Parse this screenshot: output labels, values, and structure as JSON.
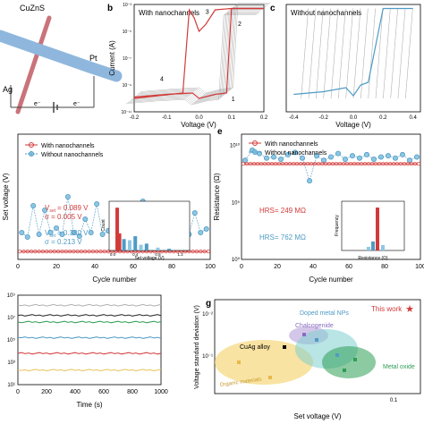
{
  "colors": {
    "red": "#d23a3a",
    "blue": "#4f9bc4",
    "light_blue": "#8ec7e3",
    "gray": "#9a9a9a",
    "green": "#2e9e55",
    "purple": "#b8a0d8",
    "yellow": "#f5d77a",
    "teal": "#7fd0cf",
    "wire_blue": "#8fb7dd",
    "wire_red": "#c9737a"
  },
  "icons": {
    "star": "red-star-icon"
  },
  "panels": {
    "a": {
      "labels": {
        "material": "CuZnS",
        "left": "Ag",
        "right": "Pt",
        "e1": "e⁻",
        "e2": "e⁻"
      }
    },
    "b": {
      "letter": "b",
      "subtitle": "With nanochannels"
    },
    "c": {
      "letter": "c",
      "subtitle": "Without  nanochannels"
    },
    "d": {
      "stat_label": "V",
      "stat_sub": "set"
    },
    "e": {
      "letter": "e"
    },
    "g": {
      "letter": "g"
    }
  },
  "chart_data": [
    {
      "id": "b",
      "type": "line",
      "title": "With nanochannels",
      "xlabel": "Voltage (V)",
      "ylabel": "Current (A)",
      "xlim": [
        -0.2,
        0.2
      ],
      "ylim_log10": [
        -11,
        -3
      ],
      "scale_y": "log",
      "xticks": [
        "-0.2",
        "-0.1",
        "0.0",
        "0.1",
        "0.2"
      ],
      "yticks": [
        "10⁻¹¹",
        "10⁻⁹",
        "10⁻⁷",
        "10⁻⁵",
        "10⁻³"
      ],
      "annotations": [
        "1",
        "2",
        "3",
        "4"
      ],
      "series": [
        {
          "x": [
            -0.2,
            -0.1,
            -0.02,
            0.0,
            0.05,
            0.085,
            0.1,
            0.2
          ],
          "y": [
            -9.9,
            -9.7,
            -9.6,
            -10.0,
            -9.7,
            -9.6,
            -3.3,
            -3.3
          ]
        },
        {
          "x": [
            0.2,
            0.1,
            0.05,
            0.02,
            0.0,
            -0.015,
            -0.03,
            -0.05,
            -0.2
          ],
          "y": [
            -3.3,
            -3.3,
            -3.4,
            -4.5,
            -5.0,
            -4.0,
            -3.4,
            -9.6,
            -10.0
          ]
        }
      ]
    },
    {
      "id": "c",
      "type": "line",
      "title": "Without  nanochannels",
      "xlabel": "Voltage (V)",
      "ylabel": "",
      "xlim": [
        -0.45,
        0.45
      ],
      "ylim_log10": [
        -11,
        -3
      ],
      "scale_y": "log",
      "xticks": [
        "-0.4",
        "-0.2",
        "0.0",
        "0.2",
        "0.4"
      ],
      "yticks": [],
      "series": [
        {
          "x": [
            -0.4,
            -0.2,
            -0.05,
            0.0,
            0.05,
            0.1,
            0.2,
            0.4
          ],
          "y": [
            -9.7,
            -9.5,
            -9.2,
            -9.8,
            -9.0,
            -8.8,
            -3.3,
            -3.3
          ]
        }
      ]
    },
    {
      "id": "d",
      "type": "scatter",
      "xlabel": "Cycle number",
      "ylabel": "Set voltage (V)",
      "xlim": [
        0,
        100
      ],
      "ylim": [
        0,
        1.4
      ],
      "xticks": [
        "0",
        "20",
        "40",
        "60",
        "80",
        "100"
      ],
      "yticks": [],
      "legend_position": "top-left",
      "series": [
        {
          "name": "With nanochannels",
          "y_const": 0.089
        },
        {
          "name": "Without nanochannels",
          "x": [
            2,
            5,
            8,
            11,
            14,
            17,
            20,
            23,
            26,
            29,
            32,
            35,
            38,
            41,
            44,
            47,
            50,
            53,
            56,
            59,
            62,
            65,
            68,
            71,
            74,
            77,
            80,
            83,
            86,
            89,
            92,
            95,
            98
          ],
          "y": [
            0.3,
            0.25,
            0.6,
            0.28,
            0.55,
            0.3,
            0.35,
            0.28,
            0.7,
            0.3,
            0.26,
            0.45,
            0.3,
            0.62,
            0.28,
            0.32,
            0.58,
            0.3,
            0.27,
            0.5,
            0.33,
            0.65,
            0.3,
            0.29,
            0.55,
            0.31,
            0.6,
            0.3,
            0.48,
            0.28,
            0.52,
            0.3,
            0.34
          ]
        }
      ],
      "stats": [
        {
          "text": "= 0.089 V",
          "sigma": "σ  = 0.005 V"
        },
        {
          "text": "= 0.380 V",
          "sigma": "σ  = 0.213 V"
        }
      ],
      "inset": {
        "type": "bar",
        "xlabel": "Set voltage (V)",
        "ylabel": "Count",
        "xticks": [
          "0.0",
          "0.4",
          "0.8",
          "1.2"
        ],
        "series": [
          {
            "x": [
              0.08,
              0.12
            ],
            "values": [
              75,
              30
            ]
          },
          {
            "x": [
              0.2,
              0.3,
              0.4,
              0.5,
              0.6,
              0.8,
              1.0
            ],
            "values": [
              20,
              18,
              25,
              10,
              12,
              5,
              3
            ]
          }
        ]
      }
    },
    {
      "id": "e",
      "type": "scatter",
      "xlabel": "Cycle number",
      "ylabel": "Resistance (Ω)",
      "xlim": [
        0,
        100
      ],
      "ylim_log10": [
        0,
        11
      ],
      "xticks": [
        "0",
        "20",
        "40",
        "60",
        "80",
        "100"
      ],
      "yticks": [
        "10⁰",
        "10⁵",
        "10¹⁰"
      ],
      "legend_position": "top-left",
      "series": [
        {
          "name": "With nanochannels",
          "y_log10": 8.4
        },
        {
          "name": "Without nanochannels",
          "x": [
            2,
            6,
            10,
            14,
            18,
            22,
            26,
            30,
            34,
            38,
            42,
            46,
            50,
            54,
            58,
            62,
            66,
            70,
            74,
            78,
            82,
            86,
            90,
            94,
            98
          ],
          "y_log10": [
            8.7,
            9.6,
            9.3,
            8.9,
            9.0,
            8.8,
            9.2,
            9.4,
            8.9,
            6.9,
            9.1,
            8.7,
            9.0,
            9.3,
            8.8,
            9.1,
            8.9,
            9.2,
            8.8,
            9.0,
            9.1,
            8.9,
            9.2,
            8.7,
            9.0
          ]
        }
      ],
      "annotations": [
        "HRS= 249 MΩ",
        "HRS= 762 MΩ"
      ],
      "inset": {
        "type": "bar",
        "xlabel": "Resistance (Ω)",
        "ylabel": "Frequency"
      }
    },
    {
      "id": "f",
      "type": "line",
      "xlabel": "Time (s)",
      "xlim": [
        0,
        1000
      ],
      "ylim_log10": [
        1,
        9
      ],
      "xticks": [
        "0",
        "200",
        "400",
        "600",
        "800",
        "1000"
      ],
      "yticks": [
        "10⁹",
        "10⁷",
        "10⁵",
        "10³",
        "10¹"
      ],
      "series": [
        {
          "y_log10": 8.1
        },
        {
          "y_log10": 7.2
        },
        {
          "y_log10": 6.6
        },
        {
          "y_log10": 5.2
        },
        {
          "y_log10": 3.8
        },
        {
          "y_log10": 2.3
        }
      ]
    },
    {
      "id": "g",
      "type": "scatter",
      "xlabel": "Set voltage (V)",
      "ylabel": "Voltage standard deviation (V)",
      "xlim_log10": [
        -2.5,
        -0.3
      ],
      "ylim_log10": [
        -3,
        -1.5
      ],
      "xticks": [
        "0.1"
      ],
      "yticks": [
        "10⁻²",
        "10⁻¹"
      ],
      "annotations": [
        "This work",
        "CuAg alloy",
        "Doped metal NPs",
        "Chalcogenide",
        "Metal oxide",
        "Organic materials"
      ]
    }
  ]
}
